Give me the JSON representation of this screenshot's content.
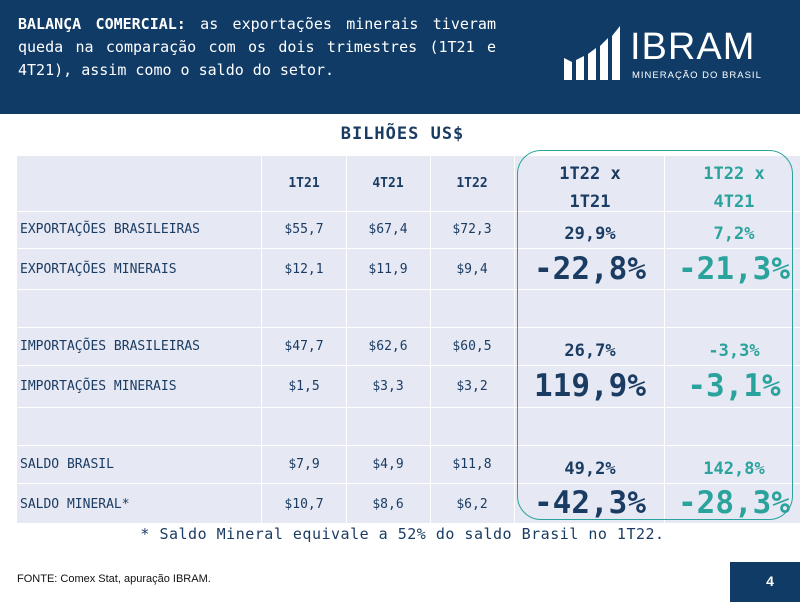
{
  "header": {
    "intro_bold": "BALANÇA COMERCIAL:",
    "intro_text": "as exportações minerais tiveram queda na comparação com os dois trimestres (1T21 e 4T21), assim como o saldo do setor.",
    "logo_word": "IBRAM",
    "logo_sub": "MINERAÇÃO DO BRASIL",
    "logo_icon": "ibram-bars-logo"
  },
  "table": {
    "unit_title": "BILHÕES US$",
    "col_headers": [
      "1T21",
      "4T21",
      "1T22"
    ],
    "cmp_header_a": [
      "1T22 x",
      "1T21"
    ],
    "cmp_header_b": [
      "1T22 x",
      "4T21"
    ],
    "rows": [
      {
        "label": "EXPORTAÇÕES BRASILEIRAS",
        "v1": "$55,7",
        "v2": "$67,4",
        "v3": "$72,3",
        "pa": "29,9%",
        "pb": "7,2%"
      },
      {
        "label": "EXPORTAÇÕES MINERAIS",
        "v1": "$12,1",
        "v2": "$11,9",
        "v3": "$9,4",
        "pa": "-22,8%",
        "pb": "-21,3%"
      },
      {
        "label": "IMPORTAÇÕES BRASILEIRAS",
        "v1": "$47,7",
        "v2": "$62,6",
        "v3": "$60,5",
        "pa": "26,7%",
        "pb": "-3,3%"
      },
      {
        "label": "IMPORTAÇÕES MINERAIS",
        "v1": "$1,5",
        "v2": "$3,3",
        "v3": "$3,2",
        "pa": "119,9%",
        "pb": "-3,1%"
      },
      {
        "label": "SALDO BRASIL",
        "v1": "$7,9",
        "v2": "$4,9",
        "v3": "$11,8",
        "pa": "49,2%",
        "pb": "142,8%"
      },
      {
        "label": "SALDO MINERAL*",
        "v1": "$10,7",
        "v2": "$8,6",
        "v3": "$6,2",
        "pa": "-42,3%",
        "pb": "-28,3%"
      }
    ]
  },
  "footnote": "* Saldo Mineral equivale a 52% do saldo Brasil no 1T22.",
  "source": "FONTE: Comex Stat, apuração IBRAM.",
  "page_number": "4",
  "colors": {
    "navy": "#0f3b66",
    "teal": "#2aa39c",
    "table_bg": "#e6e8f4",
    "text": "#1b3c62"
  }
}
